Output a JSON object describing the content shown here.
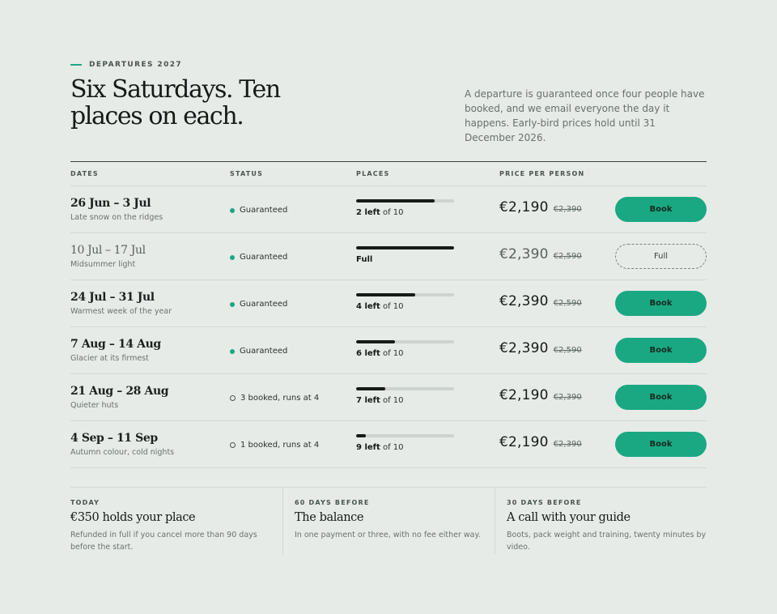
{
  "eyebrow": "DEPARTURES 2027",
  "title": "Six Saturdays. Ten places on each.",
  "intro": "A departure is guaranteed once four people have booked, and we email everyone the day it happens. Early-bird prices hold until 31 December 2026.",
  "colors": {
    "accent": "#1aa882",
    "background": "#e6ebe8",
    "ink": "#161a18"
  },
  "table": {
    "headers": {
      "dates": "DATES",
      "status": "STATUS",
      "places": "PLACES",
      "price": "PRICE PER PERSON"
    },
    "rows": [
      {
        "dates": "26 Jun – 3 Jul",
        "sub": "Late snow on the ridges",
        "status": "Guaranteed",
        "status_icon": "filled-dot-icon",
        "fill_fraction": 0.8,
        "left": "2 left",
        "of": " of 10",
        "price": "€2,190",
        "was": "€2,390",
        "action": "Book"
      },
      {
        "dates": "10 Jul – 17 Jul",
        "sub": "Midsummer light",
        "status": "Guaranteed",
        "status_icon": "filled-dot-icon",
        "fill_fraction": 1.0,
        "left": "Full",
        "of": "",
        "price": "€2,390",
        "was": "€2,590",
        "action": "Full"
      },
      {
        "dates": "24 Jul – 31 Jul",
        "sub": "Warmest week of the year",
        "status": "Guaranteed",
        "status_icon": "filled-dot-icon",
        "fill_fraction": 0.6,
        "left": "4 left",
        "of": " of 10",
        "price": "€2,390",
        "was": "€2,590",
        "action": "Book"
      },
      {
        "dates": "7 Aug – 14 Aug",
        "sub": "Glacier at its firmest",
        "status": "Guaranteed",
        "status_icon": "filled-dot-icon",
        "fill_fraction": 0.4,
        "left": "6 left",
        "of": " of 10",
        "price": "€2,390",
        "was": "€2,590",
        "action": "Book"
      },
      {
        "dates": "21 Aug – 28 Aug",
        "sub": "Quieter huts",
        "status": "3 booked, runs at 4",
        "status_icon": "open-dot-icon",
        "fill_fraction": 0.3,
        "left": "7 left",
        "of": " of 10",
        "price": "€2,190",
        "was": "€2,390",
        "action": "Book"
      },
      {
        "dates": "4 Sep – 11 Sep",
        "sub": "Autumn colour, cold nights",
        "status": "1 booked, runs at 4",
        "status_icon": "open-dot-icon",
        "fill_fraction": 0.1,
        "left": "9 left",
        "of": " of 10",
        "price": "€2,190",
        "was": "€2,390",
        "action": "Book"
      }
    ]
  },
  "steps": [
    {
      "kicker": "TODAY",
      "heading": "€350 holds your place",
      "body": "Refunded in full if you cancel more than 90 days before the start."
    },
    {
      "kicker": "60 DAYS BEFORE",
      "heading": "The balance",
      "body": "In one payment or three, with no fee either way."
    },
    {
      "kicker": "30 DAYS BEFORE",
      "heading": "A call with your guide",
      "body": "Boots, pack weight and training, twenty minutes by video."
    }
  ]
}
